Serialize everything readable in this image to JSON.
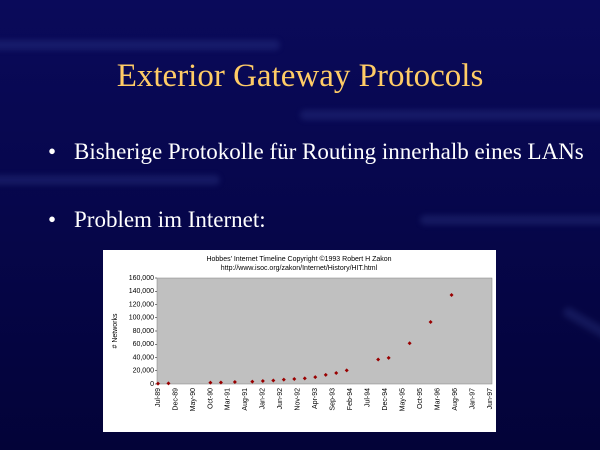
{
  "slide": {
    "title": "Exterior Gateway Protocols",
    "bullets": [
      "Bisherige Protokolle für Routing innerhalb eines LANs",
      "Problem im Internet:"
    ]
  },
  "chart_data": {
    "type": "scatter",
    "title": "Hobbes' Internet Timeline Copyright ©1993 Robert H Zakon",
    "subtitle": "http://www.isoc.org/zakon/Internet/History/HIT.html",
    "y_label": "# Networks",
    "categories": [
      "Jul-89",
      "Dec-89",
      "May-90",
      "Oct-90",
      "Mar-91",
      "Aug-91",
      "Jan-92",
      "Jun-92",
      "Nov-92",
      "Apr-93",
      "Sep-93",
      "Feb-94",
      "Jul-94",
      "Dec-94",
      "May-95",
      "Oct-95",
      "Mar-96",
      "Aug-96",
      "Jan-97",
      "Jun-97"
    ],
    "x": [
      "Jul-89",
      "Oct-89",
      "Oct-90",
      "Jan-91",
      "May-91",
      "Oct-91",
      "Jan-92",
      "Apr-92",
      "Jul-92",
      "Oct-92",
      "Jan-93",
      "Apr-93",
      "Jul-93",
      "Oct-93",
      "Jan-94",
      "Oct-94",
      "Jan-95",
      "Jul-95",
      "Jan-96",
      "Jul-96"
    ],
    "values": [
      650,
      1000,
      2063,
      2338,
      3086,
      3556,
      4526,
      5291,
      6569,
      7505,
      8561,
      10394,
      13767,
      16533,
      20539,
      37022,
      39410,
      61538,
      93671,
      134365
    ],
    "color": "#990000",
    "ylim": [
      0,
      160000
    ],
    "yticks": [
      0,
      {
        "value": 20000,
        "label": "20,000"
      },
      {
        "value": 40000,
        "label": "40,000"
      },
      {
        "value": 60000,
        "label": "60,000"
      },
      {
        "value": 80000,
        "label": "80,000"
      },
      {
        "value": 100000,
        "label": "100,000"
      },
      {
        "value": 120000,
        "label": "120,000"
      },
      {
        "value": 140000,
        "label": "140,000"
      },
      {
        "value": 160000,
        "label": "160,000"
      }
    ]
  }
}
